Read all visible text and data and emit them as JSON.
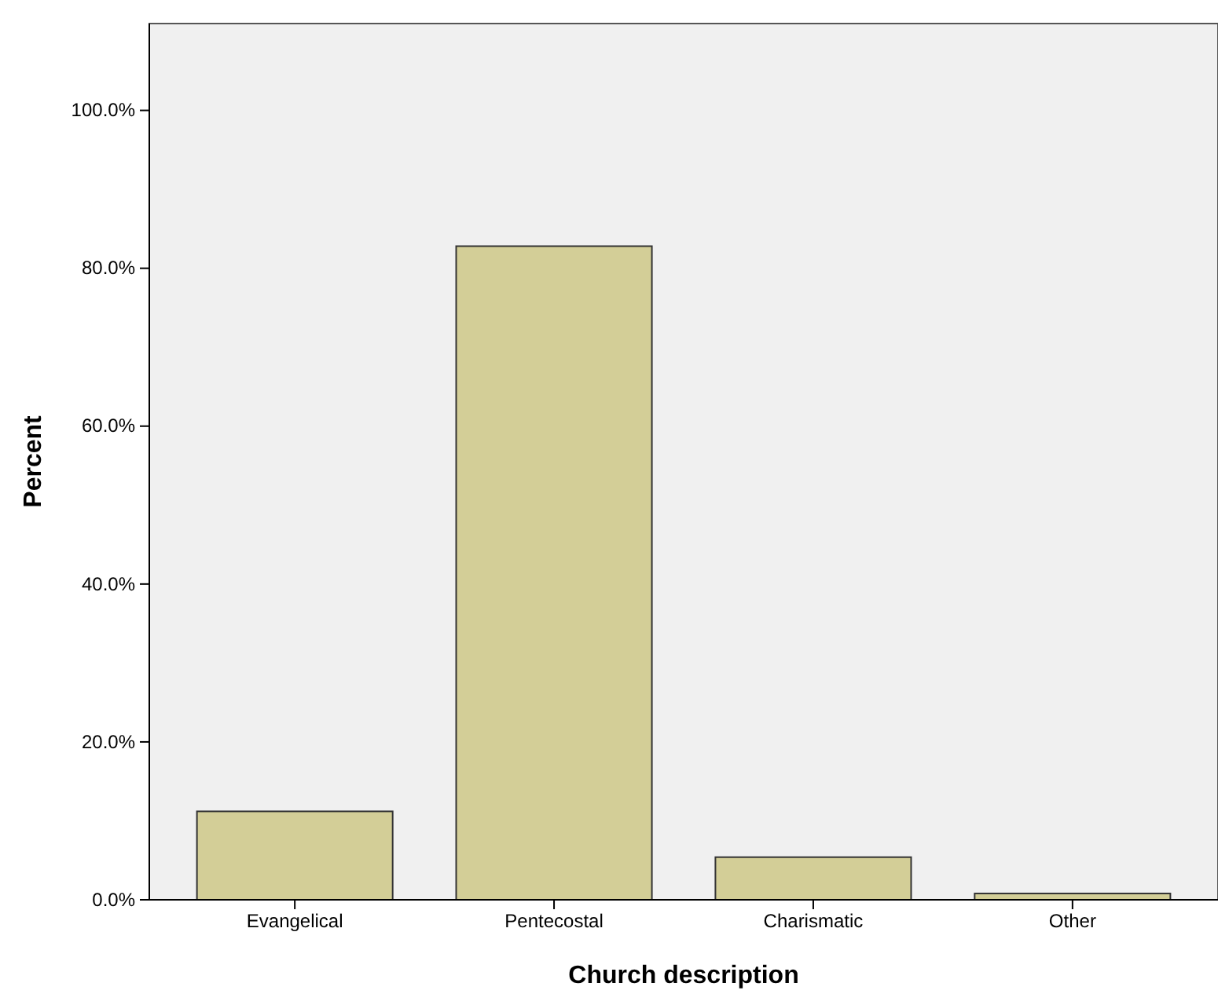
{
  "chart_data": {
    "type": "bar",
    "xlabel": "Church description",
    "ylabel": "Percent",
    "categories": [
      "Evangelical",
      "Pentecostal",
      "Charismatic",
      "Other"
    ],
    "values": [
      11.2,
      82.8,
      5.4,
      0.8
    ],
    "color": "#d3ce97",
    "ylim": [
      0,
      111
    ],
    "yticks": [
      {
        "value": 0,
        "label": "0.0%"
      },
      {
        "value": 20,
        "label": "20.0%"
      },
      {
        "value": 40,
        "label": "40.0%"
      },
      {
        "value": 60,
        "label": "60.0%"
      },
      {
        "value": 80,
        "label": "80.0%"
      },
      {
        "value": 100,
        "label": "100.0%"
      }
    ],
    "grid": false
  }
}
